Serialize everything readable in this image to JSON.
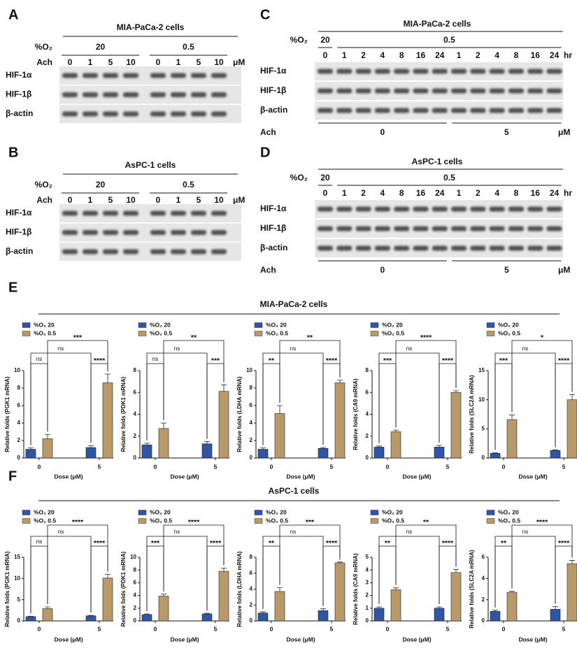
{
  "blots": [
    {
      "label": "A",
      "title": "MIA-PaCa-2 cells",
      "o2_label": "%O₂",
      "o2_groups": [
        "20",
        "0.5"
      ],
      "dose_label": "Ach",
      "doses": [
        "0",
        "1",
        "5",
        "10",
        "0",
        "1",
        "5",
        "10"
      ],
      "dose_unit": "μM",
      "rows": [
        "HIF-1α",
        "HIF-1β",
        "β-actin"
      ]
    },
    {
      "label": "B",
      "title": "AsPC-1 cells",
      "o2_label": "%O₂",
      "o2_groups": [
        "20",
        "0.5"
      ],
      "dose_label": "Ach",
      "doses": [
        "0",
        "1",
        "5",
        "10",
        "0",
        "1",
        "5",
        "10"
      ],
      "dose_unit": "μM",
      "rows": [
        "HIF-1α",
        "HIF-1β",
        "β-actin"
      ]
    },
    {
      "label": "C",
      "title": "MIA-PaCa-2 cells",
      "o2_label": "%O₂",
      "o2_groups": [
        "20",
        "0.5"
      ],
      "times": [
        "0",
        "1",
        "2",
        "4",
        "8",
        "16",
        "24",
        "1",
        "2",
        "4",
        "8",
        "16",
        "24"
      ],
      "time_unit": "hr",
      "rows": [
        "HIF-1α",
        "HIF-1β",
        "β-actin"
      ],
      "dose_label": "Ach",
      "dose_groups": [
        "0",
        "5"
      ],
      "dose_unit": "μM"
    },
    {
      "label": "D",
      "title": "AsPC-1 cells",
      "o2_label": "%O₂",
      "o2_groups": [
        "20",
        "0.5"
      ],
      "times": [
        "0",
        "1",
        "2",
        "4",
        "8",
        "16",
        "24",
        "1",
        "2",
        "4",
        "8",
        "16",
        "24"
      ],
      "time_unit": "hr",
      "rows": [
        "HIF-1α",
        "HIF-1β",
        "β-actin"
      ],
      "dose_label": "Ach",
      "dose_groups": [
        "0",
        "5"
      ],
      "dose_unit": "μM"
    }
  ],
  "sections": [
    {
      "label": "E",
      "title": "MIA-PaCa-2 cells"
    },
    {
      "label": "F",
      "title": "AsPC-1 cells"
    }
  ],
  "chart_data": [
    {
      "type": "bar",
      "ylabel": "Relative folds (PGK1 mRNA)",
      "xlabel": "Dose (μM)",
      "categories": [
        "0",
        "5"
      ],
      "ylim": [
        0,
        10
      ],
      "yticks": [
        0,
        2,
        4,
        6,
        8,
        10
      ],
      "series": [
        {
          "name": "%O₂ 20",
          "color": "#2f55a4",
          "values": [
            1.0,
            1.2
          ],
          "errors": [
            0.15,
            0.2
          ]
        },
        {
          "name": "%O₂ 0.5",
          "color": "#b8996a",
          "values": [
            2.2,
            8.6
          ],
          "errors": [
            0.5,
            1.0
          ]
        }
      ],
      "significance": {
        "o2_05": "***",
        "o2_20": "ns",
        "dose0": "ns",
        "dose5": "****"
      }
    },
    {
      "type": "bar",
      "ylabel": "Relative folds (PDK1 mRNA)",
      "xlabel": "Dose (μM)",
      "categories": [
        "0",
        "5"
      ],
      "ylim": [
        0,
        8
      ],
      "yticks": [
        0,
        2,
        4,
        6,
        8
      ],
      "series": [
        {
          "name": "%O₂ 20",
          "color": "#2f55a4",
          "values": [
            1.2,
            1.3
          ],
          "errors": [
            0.15,
            0.2
          ]
        },
        {
          "name": "%O₂ 0.5",
          "color": "#b8996a",
          "values": [
            2.7,
            6.1
          ],
          "errors": [
            0.5,
            0.6
          ]
        }
      ],
      "significance": {
        "o2_05": "**",
        "o2_20": "ns",
        "dose0": "ns",
        "dose5": "***"
      }
    },
    {
      "type": "bar",
      "ylabel": "Relative folds (LDHA mRNA)",
      "xlabel": "Dose (μM)",
      "categories": [
        "0",
        "5"
      ],
      "ylim": [
        0,
        10
      ],
      "yticks": [
        0,
        2,
        4,
        6,
        8,
        10
      ],
      "series": [
        {
          "name": "%O₂ 20",
          "color": "#2f55a4",
          "values": [
            1.0,
            1.1
          ],
          "errors": [
            0.15,
            0.1
          ]
        },
        {
          "name": "%O₂ 0.5",
          "color": "#b8996a",
          "values": [
            5.1,
            8.6
          ],
          "errors": [
            0.9,
            0.3
          ]
        }
      ],
      "significance": {
        "o2_05": "**",
        "o2_20": "ns",
        "dose0": "**",
        "dose5": "****"
      }
    },
    {
      "type": "bar",
      "ylabel": "Relative folds (CA9 mRNA)",
      "xlabel": "Dose (μM)",
      "categories": [
        "0",
        "5"
      ],
      "ylim": [
        0,
        8
      ],
      "yticks": [
        0,
        2,
        4,
        6,
        8
      ],
      "series": [
        {
          "name": "%O₂ 20",
          "color": "#2f55a4",
          "values": [
            1.0,
            1.0
          ],
          "errors": [
            0.1,
            0.15
          ]
        },
        {
          "name": "%O₂ 0.5",
          "color": "#b8996a",
          "values": [
            2.4,
            6.0
          ],
          "errors": [
            0.15,
            0.15
          ]
        }
      ],
      "significance": {
        "o2_05": "****",
        "o2_20": "ns",
        "dose0": "***",
        "dose5": "****"
      }
    },
    {
      "type": "bar",
      "ylabel": "Relative folds (SLC2A mRNA)",
      "xlabel": "Dose (μM)",
      "categories": [
        "0",
        "5"
      ],
      "ylim": [
        0,
        15
      ],
      "yticks": [
        0,
        5,
        10,
        15
      ],
      "series": [
        {
          "name": "%O₂ 20",
          "color": "#2f55a4",
          "values": [
            0.8,
            1.3
          ],
          "errors": [
            0.1,
            0.1
          ]
        },
        {
          "name": "%O₂ 0.5",
          "color": "#b8996a",
          "values": [
            6.6,
            10.0
          ],
          "errors": [
            0.8,
            0.9
          ]
        }
      ],
      "significance": {
        "o2_05": "*",
        "o2_20": "ns",
        "dose0": "***",
        "dose5": "****"
      }
    },
    {
      "type": "bar",
      "ylabel": "Relative folds (PGK1 mRNA)",
      "xlabel": "Dose (μM)",
      "categories": [
        "0",
        "5"
      ],
      "ylim": [
        0,
        15
      ],
      "yticks": [
        0,
        5,
        10,
        15
      ],
      "series": [
        {
          "name": "%O₂ 20",
          "color": "#2f55a4",
          "values": [
            1.0,
            1.2
          ],
          "errors": [
            0.1,
            0.1
          ]
        },
        {
          "name": "%O₂ 0.5",
          "color": "#b8996a",
          "values": [
            2.9,
            10.1
          ],
          "errors": [
            0.4,
            0.9
          ]
        }
      ],
      "significance": {
        "o2_05": "****",
        "o2_20": "ns",
        "dose0": "ns",
        "dose5": "****"
      }
    },
    {
      "type": "bar",
      "ylabel": "Relative folds (PDK1 mRNA)",
      "xlabel": "Dose (μM)",
      "categories": [
        "0",
        "5"
      ],
      "ylim": [
        0,
        10
      ],
      "yticks": [
        0,
        2,
        4,
        6,
        8,
        10
      ],
      "series": [
        {
          "name": "%O₂ 20",
          "color": "#2f55a4",
          "values": [
            1.0,
            1.1
          ],
          "errors": [
            0.1,
            0.1
          ]
        },
        {
          "name": "%O₂ 0.5",
          "color": "#b8996a",
          "values": [
            3.9,
            7.8
          ],
          "errors": [
            0.3,
            0.5
          ]
        }
      ],
      "significance": {
        "o2_05": "****",
        "o2_20": "ns",
        "dose0": "***",
        "dose5": "****"
      }
    },
    {
      "type": "bar",
      "ylabel": "Relative folds (LDHA mRNA)",
      "xlabel": "Dose (μM)",
      "categories": [
        "0",
        "5"
      ],
      "ylim": [
        0,
        8
      ],
      "yticks": [
        0,
        2,
        4,
        6,
        8
      ],
      "series": [
        {
          "name": "%O₂ 20",
          "color": "#2f55a4",
          "values": [
            1.0,
            1.3
          ],
          "errors": [
            0.15,
            0.25
          ]
        },
        {
          "name": "%O₂ 0.5",
          "color": "#b8996a",
          "values": [
            3.7,
            7.3
          ],
          "errors": [
            0.5,
            0.1
          ]
        }
      ],
      "significance": {
        "o2_05": "***",
        "o2_20": "ns",
        "dose0": "**",
        "dose5": "****"
      }
    },
    {
      "type": "bar",
      "ylabel": "Relative folds (CA9 mRNA)",
      "xlabel": "Dose (μM)",
      "categories": [
        "0",
        "5"
      ],
      "ylim": [
        0,
        5
      ],
      "yticks": [
        0,
        1,
        2,
        3,
        4,
        5
      ],
      "series": [
        {
          "name": "%O₂ 20",
          "color": "#2f55a4",
          "values": [
            1.0,
            1.0
          ],
          "errors": [
            0.1,
            0.1
          ]
        },
        {
          "name": "%O₂ 0.5",
          "color": "#b8996a",
          "values": [
            2.45,
            3.8
          ],
          "errors": [
            0.15,
            0.25
          ]
        }
      ],
      "significance": {
        "o2_05": "**",
        "o2_20": "ns",
        "dose0": "**",
        "dose5": "****"
      }
    },
    {
      "type": "bar",
      "ylabel": "Relative folds (SLC2A mRNA)",
      "xlabel": "Dose (μM)",
      "categories": [
        "0",
        "5"
      ],
      "ylim": [
        0,
        6
      ],
      "yticks": [
        0,
        2,
        4,
        6
      ],
      "series": [
        {
          "name": "%O₂ 20",
          "color": "#2f55a4",
          "values": [
            0.9,
            1.1
          ],
          "errors": [
            0.1,
            0.25
          ]
        },
        {
          "name": "%O₂ 0.5",
          "color": "#b8996a",
          "values": [
            2.7,
            5.4
          ],
          "errors": [
            0.1,
            0.3
          ]
        }
      ],
      "significance": {
        "o2_05": "****",
        "o2_20": "ns",
        "dose0": "**",
        "dose5": "****"
      }
    }
  ]
}
